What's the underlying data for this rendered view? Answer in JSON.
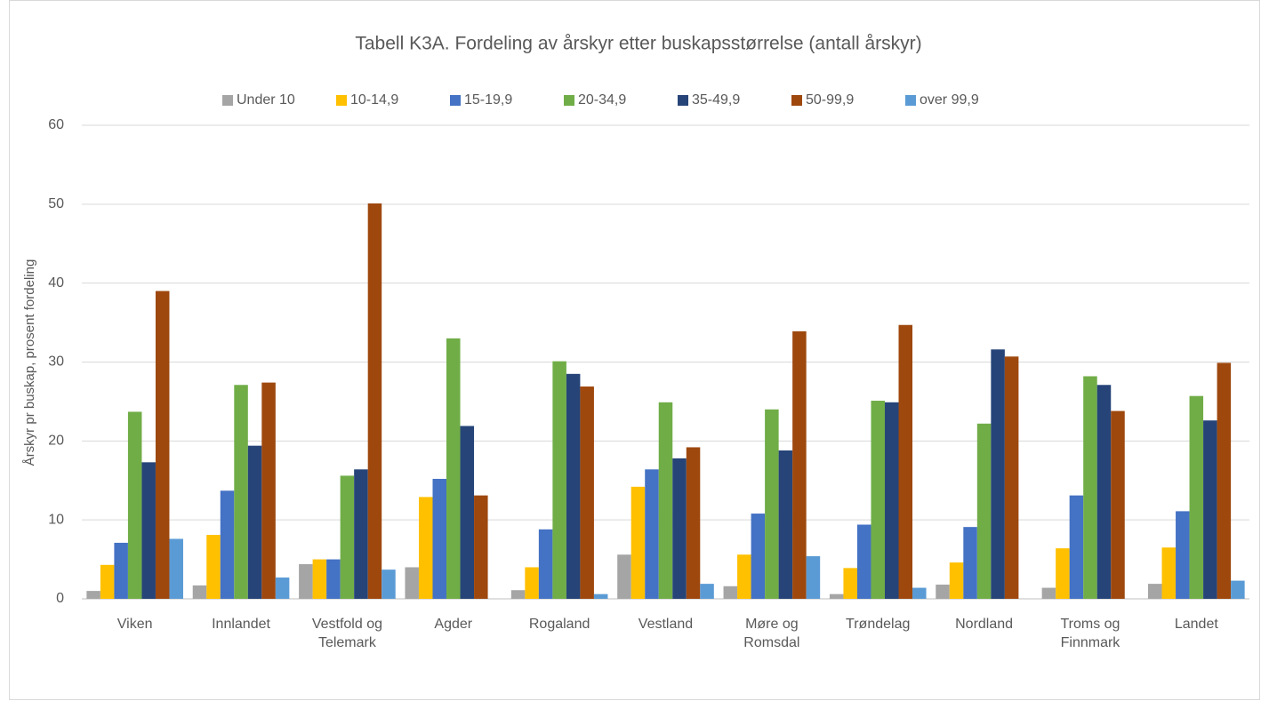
{
  "chart_data": {
    "type": "bar",
    "title": "Tabell K3A.  Fordeling av årskyr etter buskapsstørrelse (antall årskyr)",
    "y_label": "Årskyr pr buskap, prosent fordeling",
    "categories": [
      "Viken",
      "Innlandet",
      "Vestfold og Telemark",
      "Agder",
      "Rogaland",
      "Vestland",
      "Møre og Romsdal",
      "Trøndelag",
      "Nordland",
      "Troms og Finnmark",
      "Landet"
    ],
    "series": [
      {
        "name": "Under 10",
        "color": "#a5a5a5",
        "values": [
          1.0,
          1.7,
          4.4,
          4.0,
          1.1,
          5.6,
          1.6,
          0.6,
          1.8,
          1.4,
          1.9
        ]
      },
      {
        "name": "10-14,9",
        "color": "#ffc000",
        "values": [
          4.3,
          8.1,
          5.0,
          12.9,
          4.0,
          14.2,
          5.6,
          3.9,
          4.6,
          6.4,
          6.5
        ]
      },
      {
        "name": "15-19,9",
        "color": "#4472c4",
        "values": [
          7.1,
          13.7,
          5.0,
          15.2,
          8.8,
          16.4,
          10.8,
          9.4,
          9.1,
          13.1,
          11.1
        ]
      },
      {
        "name": "20-34,9",
        "color": "#70ad47",
        "values": [
          23.7,
          27.1,
          15.6,
          33.0,
          30.1,
          24.9,
          24.0,
          25.1,
          22.2,
          28.2,
          25.7
        ]
      },
      {
        "name": "35-49,9",
        "color": "#264478",
        "values": [
          17.3,
          19.4,
          16.4,
          21.9,
          28.5,
          17.8,
          18.8,
          24.9,
          31.6,
          27.1,
          22.6
        ]
      },
      {
        "name": "50-99,9",
        "color": "#9e480e",
        "values": [
          39.0,
          27.4,
          50.1,
          13.1,
          26.9,
          19.2,
          33.9,
          34.7,
          30.7,
          23.8,
          29.9
        ]
      },
      {
        "name": "over 99,9",
        "color": "#5b9bd5",
        "values": [
          7.6,
          2.7,
          3.7,
          0,
          0.6,
          1.9,
          5.4,
          1.4,
          0,
          0,
          2.3
        ]
      }
    ],
    "ylim": [
      0,
      60
    ],
    "yticks": [
      0,
      10,
      20,
      30,
      40,
      50,
      60
    ],
    "grid": true,
    "legend": "top"
  }
}
